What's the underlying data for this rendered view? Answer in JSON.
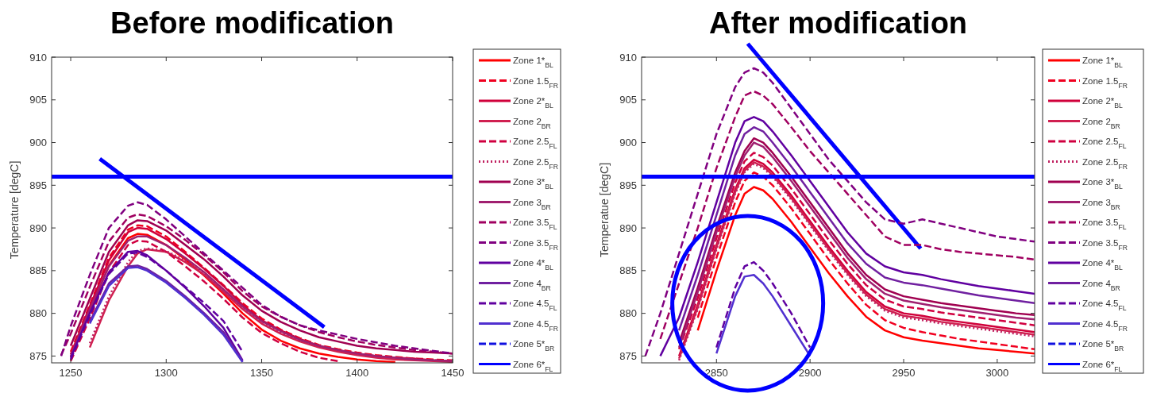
{
  "chart_data": [
    {
      "type": "line",
      "title": "Before modification",
      "ylabel": "Temperature [degC]",
      "legend": "right",
      "xlim": [
        1240,
        1450
      ],
      "ylim": [
        874.2,
        910
      ],
      "xticks": [
        1250,
        1300,
        1350,
        1400,
        1450
      ],
      "yticks": [
        875,
        880,
        885,
        890,
        895,
        900,
        905,
        910
      ],
      "ref_lines": [
        {
          "axis": "y",
          "value": 896,
          "color": "#0000ff"
        }
      ],
      "x": [
        1245,
        1250,
        1260,
        1270,
        1280,
        1285,
        1290,
        1300,
        1310,
        1320,
        1330,
        1340,
        1350,
        1360,
        1370,
        1380,
        1390,
        1400,
        1410,
        1420,
        1430,
        1440,
        1450
      ],
      "series": [
        {
          "name": "Zone 1*$_{BL}$",
          "color": "#ff0000",
          "line_style": "solid",
          "values": [
            null,
            874.8,
            880.2,
            885.6,
            888.8,
            889.3,
            889.2,
            888,
            886.3,
            884.4,
            882.3,
            880,
            878.1,
            876.8,
            875.9,
            875.3,
            874.9,
            874.6,
            874.4,
            874.3,
            null,
            null,
            null
          ]
        },
        {
          "name": "Zone 1.5$_{FR}$",
          "color": "#f00020",
          "line_style": "dashed",
          "values": [
            null,
            875.5,
            881,
            886.5,
            889.8,
            890.3,
            890.2,
            889,
            887.2,
            885.3,
            883.3,
            881.2,
            879.4,
            878.1,
            877.1,
            876.3,
            875.8,
            875.4,
            875.1,
            874.9,
            874.7,
            874.6,
            874.5
          ]
        },
        {
          "name": "Zone 2*$_{BL}$",
          "color": "#d0003a",
          "line_style": "solid",
          "values": [
            null,
            875.2,
            880.8,
            886.2,
            889.5,
            890,
            889.9,
            888.7,
            887,
            885.2,
            883.2,
            881,
            879.2,
            878,
            877,
            876.2,
            875.7,
            875.3,
            875,
            874.8,
            874.7,
            874.5,
            874.4
          ]
        },
        {
          "name": "Zone 2$_{BR}$",
          "color": "#d02050",
          "line_style": "solid",
          "values": [
            null,
            null,
            876,
            881.5,
            885.5,
            887,
            887.5,
            887.2,
            886,
            884.5,
            882.5,
            880.5,
            878.8,
            877.6,
            876.7,
            876,
            875.5,
            875.1,
            874.8,
            874.6,
            874.5,
            874.4,
            874.3
          ]
        },
        {
          "name": "Zone 2.5$_{FL}$",
          "color": "#d00040",
          "line_style": "dashed",
          "values": [
            null,
            874.4,
            879.4,
            884.8,
            888,
            888.5,
            888.4,
            887.2,
            885.5,
            883.7,
            881.7,
            879.5,
            877.7,
            876.5,
            875.5,
            874.8,
            874.4,
            null,
            null,
            null,
            null,
            null,
            null
          ]
        },
        {
          "name": "Zone 2.5$_{FR}$",
          "color": "#c02060",
          "line_style": "dotted",
          "values": [
            null,
            null,
            876.5,
            882,
            886,
            887.3,
            887.6,
            887.3,
            886.2,
            884.7,
            882.7,
            880.7,
            879,
            877.8,
            876.9,
            876.2,
            875.7,
            875.3,
            875,
            874.8,
            874.6,
            874.5,
            874.4
          ]
        },
        {
          "name": "Zone 3*$_{BL}$",
          "color": "#a00050",
          "line_style": "solid",
          "values": [
            null,
            876.2,
            881.7,
            887.2,
            890.3,
            890.9,
            890.8,
            889.7,
            888,
            886.3,
            884.3,
            882.1,
            880.3,
            879,
            878,
            877.2,
            876.7,
            876.2,
            875.9,
            875.7,
            875.5,
            875.4,
            875.3
          ]
        },
        {
          "name": "Zone 3$_{BR}$",
          "color": "#a02070",
          "line_style": "solid",
          "values": [
            null,
            875,
            880.5,
            885.5,
            888.5,
            889,
            889,
            888,
            886.5,
            884.8,
            882.8,
            880.8,
            879.1,
            877.9,
            876.9,
            876.2,
            875.7,
            875.3,
            875,
            874.8,
            874.6,
            874.5,
            874.4
          ]
        },
        {
          "name": "Zone 3.5$_{FL}$",
          "color": "#a00060",
          "line_style": "dashed",
          "values": [
            875.1,
            877.6,
            883.1,
            888.4,
            891.2,
            891.6,
            891.4,
            890.2,
            888.6,
            886.8,
            884.8,
            882.6,
            880.8,
            879.6,
            878.6,
            877.8,
            877.2,
            876.7,
            876.3,
            876,
            875.7,
            875.5,
            875.3
          ]
        },
        {
          "name": "Zone 3.5$_{FR}$",
          "color": "#800080",
          "line_style": "dashed",
          "values": [
            875,
            878.5,
            884.5,
            890,
            892.6,
            893,
            892.7,
            891,
            889,
            887,
            885,
            883,
            881,
            879.6,
            878.6,
            878,
            877.5,
            877,
            876.6,
            876.2,
            875.9,
            875.6,
            875.3
          ]
        },
        {
          "name": "Zone 4*$_{BL}$",
          "color": "#6000a0",
          "line_style": "solid",
          "values": [
            null,
            874.8,
            880,
            884.8,
            887.2,
            887.3,
            886.8,
            885,
            883,
            880.8,
            878.3,
            874.5,
            null,
            null,
            null,
            null,
            null,
            null,
            null,
            null,
            null,
            null,
            null
          ]
        },
        {
          "name": "Zone 4$_{BR}$",
          "color": "#7020a0",
          "line_style": "solid",
          "values": [
            null,
            null,
            879,
            883.5,
            885.5,
            885.6,
            885.2,
            883.8,
            882,
            880,
            877.8,
            874.4,
            null,
            null,
            null,
            null,
            null,
            null,
            null,
            null,
            null,
            null,
            null
          ]
        },
        {
          "name": "Zone 4.5$_{FL}$",
          "color": "#6000a0",
          "line_style": "dashed",
          "values": [
            null,
            874.6,
            879.8,
            884.6,
            887,
            887.1,
            886.6,
            885,
            883.1,
            881.2,
            879.1,
            875.5,
            null,
            null,
            null,
            null,
            null,
            null,
            null,
            null,
            null,
            null,
            null
          ]
        },
        {
          "name": "Zone 4.5$_{FR}$",
          "color": "#5030d0",
          "line_style": "solid",
          "values": [
            null,
            null,
            878.8,
            883.2,
            885.3,
            885.4,
            885,
            883.6,
            881.8,
            879.8,
            877.5,
            874.3,
            null,
            null,
            null,
            null,
            null,
            null,
            null,
            null,
            null,
            null,
            null
          ]
        },
        {
          "name": "Zone 5*$_{BR}$",
          "color": "#1010e0",
          "line_style": "dashed",
          "values": [
            null,
            null,
            null,
            null,
            null,
            null,
            null,
            null,
            null,
            null,
            null,
            null,
            null,
            null,
            null,
            null,
            null,
            null,
            null,
            null,
            null,
            null,
            null
          ]
        },
        {
          "name": "Zone 6*$_{FL}$",
          "color": "#0000ff",
          "line_style": "solid",
          "values": [
            null,
            null,
            null,
            null,
            null,
            null,
            null,
            null,
            null,
            null,
            null,
            null,
            null,
            null,
            null,
            null,
            null,
            null,
            null,
            null,
            null,
            null,
            null
          ]
        }
      ]
    },
    {
      "type": "line",
      "title": "After modification",
      "ylabel": "Temperatue [degC]",
      "legend": "right",
      "xlim": [
        2810,
        3020
      ],
      "ylim": [
        874.2,
        910
      ],
      "xticks": [
        2850,
        2900,
        2950,
        3000
      ],
      "yticks": [
        875,
        880,
        885,
        890,
        895,
        900,
        905,
        910
      ],
      "ref_lines": [
        {
          "axis": "y",
          "value": 896,
          "color": "#0000ff"
        }
      ],
      "x": [
        2812,
        2820,
        2830,
        2840,
        2850,
        2860,
        2865,
        2870,
        2875,
        2880,
        2890,
        2900,
        2910,
        2920,
        2930,
        2940,
        2950,
        2960,
        2970,
        2980,
        2990,
        3000,
        3010,
        3020
      ],
      "series": [
        {
          "name": "Zone 1*$_{BL}$",
          "color": "#ff0000",
          "line_style": "solid",
          "values": [
            null,
            null,
            null,
            878,
            885,
            891.5,
            894,
            894.8,
            894.4,
            893.4,
            890.7,
            887.7,
            884.7,
            882,
            879.6,
            878,
            877.2,
            876.8,
            876.5,
            876.2,
            875.9,
            875.7,
            875.5,
            875.3
          ]
        },
        {
          "name": "Zone 1.5$_{FR}$",
          "color": "#f00020",
          "line_style": "dashed",
          "values": [
            null,
            null,
            null,
            879.5,
            886.5,
            893,
            895.5,
            896.5,
            896,
            895,
            892.3,
            889.3,
            886.3,
            883.5,
            881,
            879.2,
            878.3,
            877.8,
            877.4,
            877,
            876.7,
            876.4,
            876.1,
            875.8
          ]
        },
        {
          "name": "Zone 2*$_{BL}$",
          "color": "#d0003a",
          "line_style": "solid",
          "values": [
            null,
            null,
            875,
            881,
            888,
            894.5,
            897,
            898,
            897.5,
            896.5,
            893.8,
            890.8,
            887.8,
            885,
            882.5,
            880.8,
            880,
            879.7,
            879.3,
            879,
            878.7,
            878.4,
            878.1,
            877.8
          ]
        },
        {
          "name": "Zone 2$_{BR}$",
          "color": "#d02050",
          "line_style": "solid",
          "values": [
            null,
            null,
            874.7,
            880.7,
            887.7,
            894.2,
            896.7,
            897.7,
            897.2,
            896.2,
            893.5,
            890.5,
            887.5,
            884.7,
            882.2,
            880.5,
            879.7,
            879.4,
            879,
            878.7,
            878.4,
            878.1,
            877.8,
            877.5
          ]
        },
        {
          "name": "Zone 2.5$_{FL}$",
          "color": "#d00040",
          "line_style": "dashed",
          "values": [
            null,
            null,
            875.8,
            881.8,
            888.8,
            895.3,
            897.8,
            898.8,
            898.3,
            897.3,
            894.6,
            891.6,
            888.6,
            885.8,
            883.3,
            881.6,
            880.8,
            880.5,
            880.1,
            879.8,
            879.5,
            879.2,
            878.9,
            878.6
          ]
        },
        {
          "name": "Zone 2.5$_{FR}$",
          "color": "#c02060",
          "line_style": "dotted",
          "values": [
            null,
            null,
            874.5,
            880.5,
            887.5,
            894,
            896.5,
            897.5,
            897,
            896,
            893.3,
            890.3,
            887.3,
            884.5,
            882,
            880.3,
            879.5,
            879.2,
            878.8,
            878.5,
            878.2,
            877.9,
            877.6,
            877.3
          ]
        },
        {
          "name": "Zone 3*$_{BL}$",
          "color": "#a00050",
          "line_style": "solid",
          "values": [
            null,
            null,
            876.5,
            883,
            890,
            896.5,
            899,
            900.5,
            900,
            898.8,
            896,
            893,
            890,
            887,
            884.5,
            882.8,
            882,
            881.6,
            881.2,
            880.9,
            880.6,
            880.3,
            880,
            879.8
          ]
        },
        {
          "name": "Zone 3$_{BR}$",
          "color": "#a02070",
          "line_style": "solid",
          "values": [
            null,
            null,
            876,
            882.5,
            889.5,
            896,
            898.5,
            900,
            899.5,
            898.3,
            895.5,
            892.5,
            889.5,
            886.5,
            884,
            882.3,
            881.5,
            881.1,
            880.7,
            880.4,
            880.1,
            879.8,
            879.5,
            879.3
          ]
        },
        {
          "name": "Zone 3.5$_{FL}$",
          "color": "#a00060",
          "line_style": "dashed",
          "values": [
            null,
            877,
            883.5,
            890,
            897,
            903,
            905.5,
            906,
            905.5,
            904.5,
            901.8,
            899,
            896.5,
            894,
            891.5,
            889,
            888,
            888,
            887.5,
            887.2,
            887,
            886.8,
            886.6,
            886.3
          ]
        },
        {
          "name": "Zone 3.5$_{FR}$",
          "color": "#800080",
          "line_style": "dashed",
          "values": [
            875,
            880,
            887,
            894,
            901,
            906.5,
            908.2,
            908.7,
            908.2,
            907,
            904,
            901,
            898,
            895.5,
            893,
            891,
            890.5,
            891,
            890.5,
            890,
            889.5,
            889,
            888.7,
            888.4
          ]
        },
        {
          "name": "Zone 4*$_{BL}$",
          "color": "#6000a0",
          "line_style": "solid",
          "values": [
            null,
            875,
            879.5,
            886,
            893,
            900,
            902.5,
            903,
            902.5,
            901.3,
            898.5,
            895.5,
            892.5,
            889.5,
            887,
            885.5,
            884.8,
            884.5,
            884,
            883.6,
            883.2,
            882.9,
            882.6,
            882.3
          ]
        },
        {
          "name": "Zone 4$_{BR}$",
          "color": "#7020a0",
          "line_style": "solid",
          "values": [
            null,
            null,
            878,
            884.5,
            891.5,
            898.5,
            901,
            901.8,
            901.3,
            900,
            897.2,
            894.2,
            891.2,
            888.2,
            885.8,
            884.2,
            883.6,
            883.3,
            882.9,
            882.5,
            882.1,
            881.8,
            881.5,
            881.2
          ]
        },
        {
          "name": "Zone 4.5$_{FL}$",
          "color": "#6000a0",
          "line_style": "dashed",
          "values": [
            null,
            null,
            null,
            null,
            876,
            883,
            885.5,
            886,
            885,
            883.5,
            880,
            876,
            null,
            null,
            null,
            null,
            null,
            null,
            null,
            null,
            null,
            null,
            null,
            null
          ]
        },
        {
          "name": "Zone 4.5$_{FR}$",
          "color": "#5030d0",
          "line_style": "solid",
          "values": [
            null,
            null,
            null,
            null,
            875.3,
            882,
            884.3,
            884.5,
            883.5,
            882,
            878.5,
            875,
            null,
            null,
            null,
            null,
            null,
            null,
            null,
            null,
            null,
            null,
            null,
            null
          ]
        },
        {
          "name": "Zone 5*$_{BR}$",
          "color": "#1010e0",
          "line_style": "dashed",
          "values": [
            null,
            null,
            null,
            null,
            null,
            null,
            null,
            null,
            null,
            null,
            null,
            null,
            null,
            null,
            null,
            null,
            null,
            null,
            null,
            null,
            null,
            null,
            null,
            null
          ]
        },
        {
          "name": "Zone 6*$_{FL}$",
          "color": "#0000ff",
          "line_style": "solid",
          "values": [
            null,
            null,
            null,
            null,
            null,
            null,
            null,
            null,
            null,
            null,
            null,
            null,
            null,
            null,
            null,
            null,
            null,
            null,
            null,
            null,
            null,
            null,
            null,
            null
          ]
        }
      ]
    }
  ]
}
